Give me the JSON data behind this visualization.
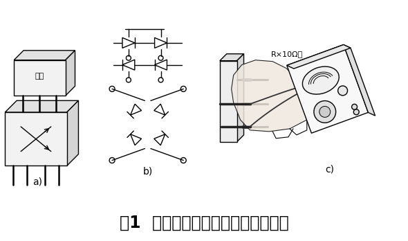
{
  "title": "图1  万用表对半桥整流堆的测试方法",
  "title_fontsize": 17,
  "bg_color": "#ffffff",
  "label_a": "a)",
  "label_b": "b)",
  "label_c": "c)",
  "label_r": "R×10Ω档",
  "fig_width": 5.9,
  "fig_height": 3.48,
  "dpi": 100,
  "line_color": "#000000",
  "lw": 1.0
}
